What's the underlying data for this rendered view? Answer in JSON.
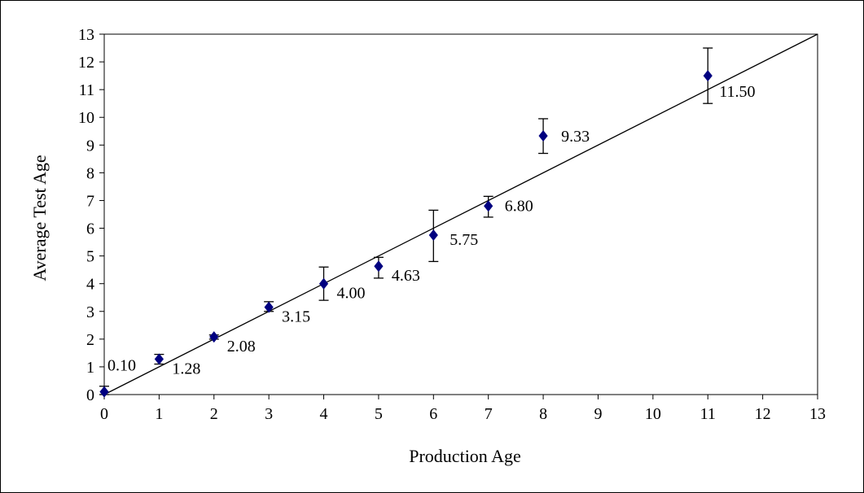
{
  "chart_data": {
    "type": "scatter",
    "xlabel": "Production Age",
    "ylabel": "Average Test Age",
    "xlim": [
      0,
      13
    ],
    "ylim": [
      0,
      13
    ],
    "x_ticks": [
      "0",
      "1",
      "2",
      "3",
      "4",
      "5",
      "6",
      "7",
      "8",
      "9",
      "10",
      "11",
      "12",
      "13"
    ],
    "y_ticks": [
      "0",
      "1",
      "2",
      "3",
      "4",
      "5",
      "6",
      "7",
      "8",
      "9",
      "10",
      "11",
      "12",
      "13"
    ],
    "grid": false,
    "legend": "none",
    "marker_color": "#000080",
    "reference_line": {
      "from": [
        0,
        0
      ],
      "to": [
        13,
        13
      ],
      "color": "#000000"
    },
    "points": [
      {
        "x": 0,
        "y": 0.1,
        "err_low": 0.0,
        "err_high": 0.3,
        "label": "0.10"
      },
      {
        "x": 1,
        "y": 1.28,
        "err_low": 1.1,
        "err_high": 1.45,
        "label": "1.28"
      },
      {
        "x": 2,
        "y": 2.08,
        "err_low": 2.0,
        "err_high": 2.15,
        "label": "2.08"
      },
      {
        "x": 3,
        "y": 3.15,
        "err_low": 3.0,
        "err_high": 3.35,
        "label": "3.15"
      },
      {
        "x": 4,
        "y": 4.0,
        "err_low": 3.4,
        "err_high": 4.6,
        "label": "4.00"
      },
      {
        "x": 5,
        "y": 4.63,
        "err_low": 4.2,
        "err_high": 4.95,
        "label": "4.63"
      },
      {
        "x": 6,
        "y": 5.75,
        "err_low": 4.8,
        "err_high": 6.65,
        "label": "5.75"
      },
      {
        "x": 7,
        "y": 6.8,
        "err_low": 6.4,
        "err_high": 7.15,
        "label": "6.80"
      },
      {
        "x": 8,
        "y": 9.33,
        "err_low": 8.7,
        "err_high": 9.95,
        "label": "9.33"
      },
      {
        "x": 11,
        "y": 11.5,
        "err_low": 10.5,
        "err_high": 12.5,
        "label": "11.50"
      }
    ]
  }
}
